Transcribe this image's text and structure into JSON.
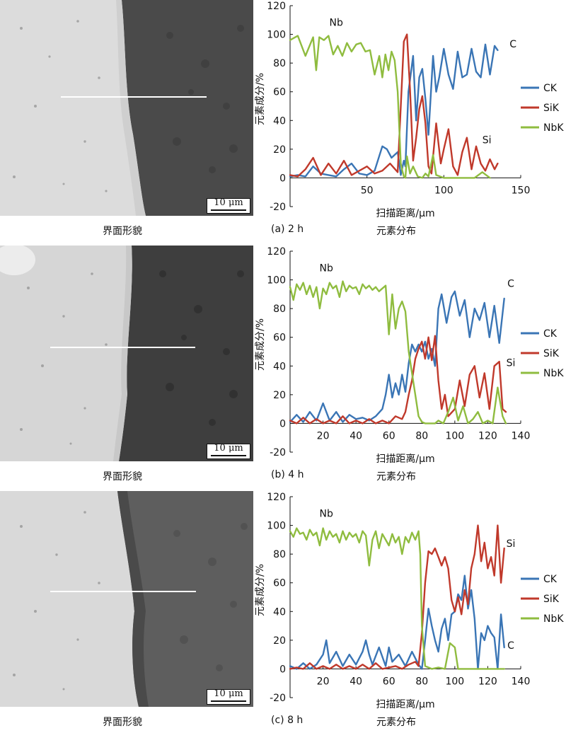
{
  "panels": [
    {
      "id": "a",
      "morphology_caption": "界面形貌",
      "scale_bar": "10 μm",
      "panel_label": "(a) 2 h",
      "chart_caption": "元素分布",
      "chart_data": {
        "type": "line",
        "xlabel": "扫描距离/μm",
        "ylabel": "元素成分/%",
        "xlim": [
          0,
          150
        ],
        "ylim": [
          -20,
          120
        ],
        "xticks": [
          50,
          100,
          150
        ],
        "yticks": [
          -20,
          0,
          20,
          40,
          60,
          80,
          100,
          120
        ],
        "legend": "right",
        "annotations": [
          {
            "text": "Nb",
            "x": 30,
            "y": 106
          },
          {
            "text": "C",
            "x": 145,
            "y": 91
          },
          {
            "text": "Si",
            "x": 128,
            "y": 24
          }
        ],
        "series": [
          {
            "name": "CK",
            "color": "#3a75b5",
            "x": [
              0,
              5,
              10,
              15,
              20,
              25,
              30,
              35,
              40,
              45,
              50,
              55,
              60,
              63,
              66,
              70,
              72,
              74,
              75,
              77,
              80,
              82,
              84,
              86,
              88,
              90,
              93,
              95,
              97,
              100,
              103,
              106,
              109,
              112,
              115,
              118,
              121,
              124,
              127,
              130,
              133,
              135
            ],
            "y": [
              1,
              2,
              1,
              8,
              3,
              2,
              1,
              6,
              10,
              3,
              2,
              5,
              22,
              20,
              14,
              18,
              2,
              12,
              8,
              60,
              85,
              40,
              70,
              76,
              55,
              30,
              85,
              60,
              70,
              90,
              72,
              62,
              88,
              70,
              72,
              90,
              74,
              70,
              93,
              72,
              92,
              89
            ]
          },
          {
            "name": "SiK",
            "color": "#c0392b",
            "x": [
              0,
              5,
              10,
              15,
              20,
              25,
              30,
              35,
              40,
              45,
              50,
              55,
              60,
              65,
              70,
              72,
              74,
              76,
              78,
              80,
              82,
              84,
              86,
              88,
              90,
              92,
              95,
              98,
              100,
              103,
              106,
              109,
              112,
              115,
              118,
              121,
              124,
              127,
              130,
              133,
              135
            ],
            "y": [
              2,
              1,
              6,
              14,
              2,
              10,
              3,
              12,
              2,
              5,
              8,
              3,
              5,
              10,
              4,
              50,
              95,
              100,
              62,
              12,
              28,
              48,
              57,
              38,
              8,
              3,
              38,
              10,
              20,
              34,
              8,
              2,
              18,
              28,
              6,
              22,
              10,
              5,
              13,
              6,
              10
            ]
          },
          {
            "name": "NbK",
            "color": "#8fbc3f",
            "x": [
              0,
              5,
              10,
              15,
              17,
              19,
              22,
              25,
              28,
              31,
              34,
              37,
              40,
              43,
              46,
              49,
              52,
              55,
              58,
              60,
              62,
              64,
              66,
              68,
              70,
              72,
              73,
              74,
              75,
              76,
              78,
              80,
              83,
              86,
              88,
              90,
              93,
              95,
              100,
              110,
              120,
              125,
              130
            ],
            "y": [
              96,
              99,
              85,
              98,
              75,
              98,
              96,
              99,
              86,
              92,
              85,
              94,
              88,
              93,
              94,
              88,
              89,
              72,
              85,
              70,
              86,
              75,
              88,
              82,
              60,
              10,
              5,
              1,
              0,
              15,
              3,
              8,
              1,
              0,
              3,
              1,
              16,
              2,
              0,
              0,
              0,
              4,
              0
            ]
          }
        ]
      }
    },
    {
      "id": "b",
      "morphology_caption": "界面形貌",
      "scale_bar": "10 μm",
      "panel_label": "(b) 4 h",
      "chart_caption": "元素分布",
      "chart_data": {
        "type": "line",
        "xlabel": "扫描距离/μm",
        "ylabel": "元素成分/%",
        "xlim": [
          0,
          140
        ],
        "ylim": [
          -20,
          120
        ],
        "xticks": [
          20,
          40,
          60,
          80,
          100,
          120,
          140
        ],
        "yticks": [
          -20,
          0,
          20,
          40,
          60,
          80,
          100,
          120
        ],
        "legend": "right",
        "annotations": [
          {
            "text": "Nb",
            "x": 22,
            "y": 106
          },
          {
            "text": "C",
            "x": 134,
            "y": 95
          },
          {
            "text": "Si",
            "x": 134,
            "y": 40
          }
        ],
        "series": [
          {
            "name": "CK",
            "color": "#3a75b5",
            "x": [
              0,
              4,
              8,
              12,
              16,
              20,
              24,
              28,
              32,
              36,
              40,
              44,
              48,
              52,
              56,
              58,
              60,
              62,
              64,
              66,
              68,
              70,
              72,
              74,
              76,
              78,
              80,
              82,
              84,
              86,
              88,
              90,
              92,
              95,
              98,
              100,
              103,
              106,
              109,
              112,
              115,
              118,
              121,
              124,
              127,
              130
            ],
            "y": [
              1,
              6,
              1,
              8,
              2,
              14,
              2,
              8,
              1,
              6,
              3,
              4,
              2,
              5,
              10,
              20,
              34,
              18,
              28,
              20,
              34,
              22,
              42,
              55,
              50,
              55,
              50,
              57,
              45,
              52,
              40,
              80,
              90,
              70,
              88,
              92,
              75,
              86,
              60,
              80,
              72,
              84,
              60,
              82,
              56,
              87
            ]
          },
          {
            "name": "SiK",
            "color": "#c0392b",
            "x": [
              0,
              4,
              8,
              12,
              16,
              20,
              24,
              28,
              32,
              36,
              40,
              44,
              48,
              52,
              56,
              60,
              64,
              68,
              70,
              72,
              74,
              76,
              78,
              80,
              82,
              84,
              86,
              88,
              90,
              92,
              94,
              96,
              100,
              103,
              106,
              109,
              112,
              115,
              118,
              121,
              124,
              127,
              129,
              131
            ],
            "y": [
              2,
              0,
              4,
              0,
              3,
              0,
              2,
              0,
              5,
              0,
              2,
              0,
              3,
              0,
              2,
              0,
              5,
              3,
              8,
              20,
              30,
              45,
              52,
              57,
              45,
              60,
              44,
              61,
              30,
              10,
              20,
              5,
              10,
              30,
              12,
              34,
              40,
              18,
              35,
              10,
              40,
              43,
              10,
              8
            ]
          },
          {
            "name": "NbK",
            "color": "#8fbc3f",
            "x": [
              0,
              2,
              4,
              6,
              8,
              10,
              12,
              14,
              16,
              18,
              20,
              22,
              24,
              26,
              28,
              30,
              32,
              34,
              36,
              38,
              40,
              42,
              44,
              46,
              48,
              50,
              52,
              54,
              56,
              58,
              60,
              62,
              64,
              66,
              68,
              70,
              72,
              74,
              76,
              78,
              80,
              82,
              85,
              88,
              90,
              93,
              96,
              99,
              102,
              105,
              108,
              111,
              114,
              117,
              120,
              123,
              126,
              129,
              131
            ],
            "y": [
              95,
              86,
              97,
              93,
              98,
              90,
              96,
              88,
              95,
              80,
              94,
              90,
              98,
              94,
              96,
              88,
              99,
              92,
              96,
              94,
              95,
              90,
              97,
              94,
              96,
              93,
              95,
              92,
              94,
              96,
              62,
              90,
              66,
              80,
              85,
              78,
              50,
              35,
              20,
              5,
              1,
              0,
              0,
              0,
              2,
              0,
              8,
              18,
              2,
              12,
              0,
              3,
              8,
              0,
              2,
              0,
              25,
              5,
              0
            ]
          }
        ]
      }
    },
    {
      "id": "c",
      "morphology_caption": "界面形貌",
      "scale_bar": "10 μm",
      "panel_label": "(c) 8 h",
      "chart_caption": "元素分布",
      "chart_data": {
        "type": "line",
        "xlabel": "扫描距离/μm",
        "ylabel": "元素成分/%",
        "xlim": [
          0,
          140
        ],
        "ylim": [
          -20,
          120
        ],
        "xticks": [
          20,
          40,
          60,
          80,
          100,
          120,
          140
        ],
        "yticks": [
          -20,
          0,
          20,
          40,
          60,
          80,
          100,
          120
        ],
        "legend": "right",
        "annotations": [
          {
            "text": "Nb",
            "x": 22,
            "y": 106
          },
          {
            "text": "Si",
            "x": 134,
            "y": 85
          },
          {
            "text": "C",
            "x": 134,
            "y": 14
          }
        ],
        "series": [
          {
            "name": "CK",
            "color": "#3a75b5",
            "x": [
              0,
              4,
              8,
              12,
              16,
              20,
              22,
              24,
              28,
              32,
              36,
              40,
              44,
              46,
              48,
              50,
              54,
              58,
              60,
              62,
              66,
              70,
              74,
              78,
              80,
              82,
              84,
              86,
              88,
              90,
              92,
              94,
              96,
              98,
              100,
              102,
              104,
              106,
              108,
              110,
              112,
              114,
              116,
              118,
              120,
              122,
              124,
              126,
              128,
              130
            ],
            "y": [
              2,
              0,
              4,
              0,
              3,
              10,
              20,
              4,
              12,
              2,
              10,
              3,
              12,
              20,
              10,
              3,
              15,
              2,
              15,
              5,
              10,
              2,
              12,
              3,
              0,
              20,
              42,
              30,
              20,
              12,
              28,
              35,
              20,
              38,
              40,
              52,
              48,
              65,
              42,
              55,
              35,
              0,
              25,
              20,
              30,
              25,
              22,
              0,
              38,
              15
            ]
          },
          {
            "name": "SiK",
            "color": "#c0392b",
            "x": [
              0,
              4,
              8,
              12,
              16,
              20,
              24,
              28,
              32,
              36,
              40,
              44,
              48,
              52,
              56,
              60,
              64,
              68,
              72,
              76,
              78,
              80,
              82,
              84,
              86,
              88,
              90,
              92,
              94,
              96,
              98,
              100,
              102,
              104,
              106,
              108,
              110,
              112,
              114,
              116,
              118,
              120,
              122,
              124,
              126,
              128,
              130
            ],
            "y": [
              0,
              1,
              0,
              4,
              0,
              2,
              0,
              3,
              0,
              2,
              0,
              3,
              0,
              4,
              0,
              1,
              2,
              0,
              3,
              5,
              2,
              25,
              60,
              82,
              80,
              84,
              78,
              72,
              78,
              70,
              48,
              40,
              50,
              38,
              55,
              45,
              70,
              80,
              100,
              75,
              88,
              70,
              78,
              65,
              100,
              60,
              84
            ]
          },
          {
            "name": "NbK",
            "color": "#8fbc3f",
            "x": [
              0,
              2,
              4,
              6,
              8,
              10,
              12,
              14,
              16,
              18,
              20,
              22,
              24,
              26,
              28,
              30,
              32,
              34,
              36,
              38,
              40,
              42,
              44,
              46,
              48,
              50,
              52,
              54,
              56,
              58,
              60,
              62,
              64,
              66,
              68,
              70,
              72,
              74,
              76,
              78,
              79,
              80,
              82,
              86,
              90,
              94,
              97,
              100,
              102,
              104,
              110,
              120,
              130
            ],
            "y": [
              96,
              92,
              98,
              94,
              95,
              90,
              97,
              93,
              95,
              86,
              98,
              90,
              96,
              92,
              94,
              88,
              96,
              90,
              95,
              92,
              94,
              88,
              96,
              93,
              72,
              90,
              96,
              84,
              94,
              90,
              86,
              94,
              88,
              92,
              80,
              92,
              88,
              95,
              90,
              96,
              80,
              30,
              2,
              0,
              1,
              0,
              18,
              15,
              0,
              0,
              0,
              0,
              0
            ]
          }
        ]
      }
    }
  ]
}
